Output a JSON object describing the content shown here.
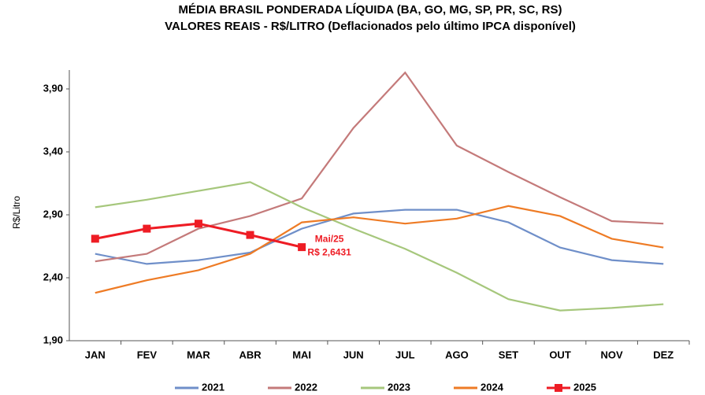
{
  "chart_data": {
    "type": "line",
    "title": "MÉDIA BRASIL PONDERADA LÍQUIDA (BA, GO, MG, SP, PR, SC, RS)",
    "subtitle": "VALORES REAIS - R$/LITRO (Deflacionados pelo último IPCA disponível)",
    "y_label": "R$/Litro",
    "categories": [
      "JAN",
      "FEV",
      "MAR",
      "ABR",
      "MAI",
      "JUN",
      "JUL",
      "AGO",
      "SET",
      "OUT",
      "NOV",
      "DEZ"
    ],
    "series": [
      {
        "name": "2021",
        "color": "#6f8fc9",
        "values": [
          2.59,
          2.51,
          2.54,
          2.6,
          2.79,
          2.91,
          2.94,
          2.94,
          2.84,
          2.64,
          2.54,
          2.51
        ]
      },
      {
        "name": "2022",
        "color": "#c47a7a",
        "values": [
          2.53,
          2.59,
          2.79,
          2.89,
          3.03,
          3.59,
          4.03,
          3.45,
          3.24,
          3.04,
          2.85,
          2.83
        ]
      },
      {
        "name": "2023",
        "color": "#a6c77c",
        "values": [
          2.96,
          3.02,
          3.09,
          3.16,
          2.96,
          2.79,
          2.63,
          2.44,
          2.23,
          2.14,
          2.16,
          2.19
        ]
      },
      {
        "name": "2024",
        "color": "#ee7b25",
        "values": [
          2.28,
          2.38,
          2.46,
          2.59,
          2.84,
          2.88,
          2.83,
          2.87,
          2.97,
          2.89,
          2.71,
          2.64
        ]
      },
      {
        "name": "2025",
        "color": "#ee1c24",
        "marker": "square",
        "values": [
          2.71,
          2.79,
          2.83,
          2.74,
          2.6431,
          null,
          null,
          null,
          null,
          null,
          null,
          null
        ]
      }
    ],
    "annotation": [
      "Mai/25",
      "R$ 2,6431"
    ],
    "ylim": [
      1.9,
      4.05
    ],
    "yticks": [
      {
        "value": 1.9,
        "label": "1,90"
      },
      {
        "value": 2.4,
        "label": "2,40"
      },
      {
        "value": 2.9,
        "label": "2,90"
      },
      {
        "value": 3.4,
        "label": "3,40"
      },
      {
        "value": 3.9,
        "label": "3,90"
      }
    ],
    "legend": "bottom"
  }
}
